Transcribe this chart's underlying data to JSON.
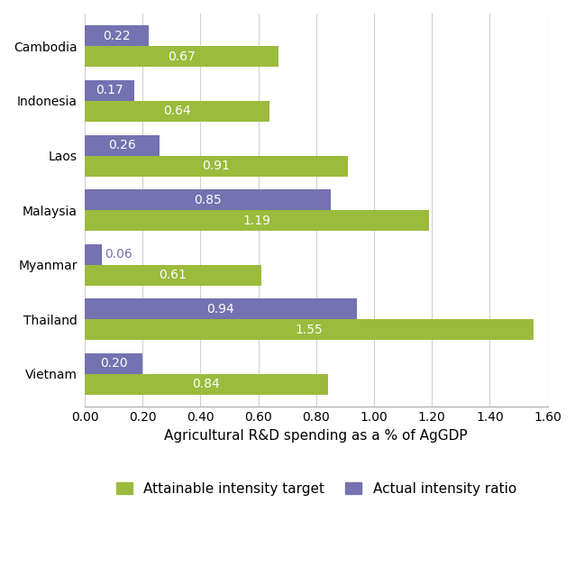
{
  "countries": [
    "Cambodia",
    "Indonesia",
    "Laos",
    "Malaysia",
    "Myanmar",
    "Thailand",
    "Vietnam"
  ],
  "attainable": [
    0.67,
    0.64,
    0.91,
    1.19,
    0.61,
    1.55,
    0.84
  ],
  "actual": [
    0.22,
    0.17,
    0.26,
    0.85,
    0.06,
    0.94,
    0.2
  ],
  "attainable_color": "#9BBB3C",
  "actual_color": "#7472B0",
  "xlabel": "Agricultural R&D spending as a % of AgGDP",
  "xlim": [
    0,
    1.6
  ],
  "xticks": [
    0.0,
    0.2,
    0.4,
    0.6,
    0.8,
    1.0,
    1.2,
    1.4,
    1.6
  ],
  "legend_attainable": "Attainable intensity target",
  "legend_actual": "Actual intensity ratio",
  "bar_height": 0.38,
  "label_fontsize": 10,
  "tick_fontsize": 10,
  "xlabel_fontsize": 11,
  "legend_fontsize": 11,
  "background_color": "#ffffff"
}
